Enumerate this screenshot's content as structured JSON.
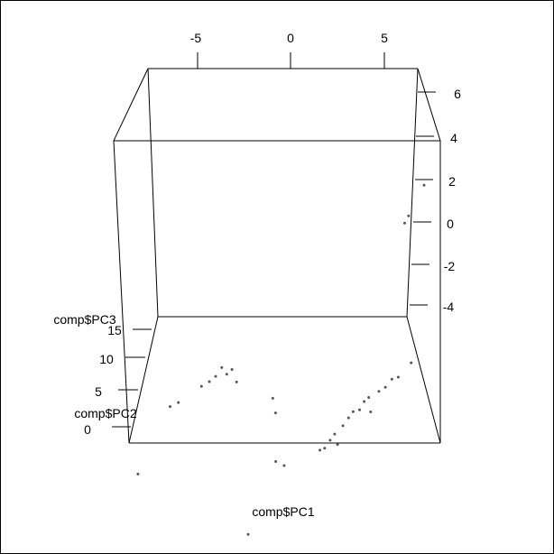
{
  "chart_data": {
    "type": "scatter",
    "title": "",
    "xlabel": "comp$PC1",
    "ylabel": "comp$PC2",
    "zlabel": "comp$PC3",
    "x_ticks": [
      "-5",
      "0",
      "5"
    ],
    "y_ticks": [
      "0",
      "5",
      "10",
      "15"
    ],
    "z_ticks": [
      "-4",
      "-2",
      "0",
      "2",
      "4",
      "6"
    ],
    "point_color": "#555555",
    "points": [
      {
        "pc1": 6.0,
        "pc2": 16.0,
        "pc3": 4.4
      },
      {
        "pc1": 5.2,
        "pc2": 15.6,
        "pc3": 3.1
      },
      {
        "pc1": 5.0,
        "pc2": 15.5,
        "pc3": 2.8
      },
      {
        "pc1": -8.2,
        "pc2": 3.0,
        "pc3": -4.3
      },
      {
        "pc1": -7.0,
        "pc2": 8.5,
        "pc3": -3.2
      },
      {
        "pc1": -6.6,
        "pc2": 9.0,
        "pc3": -3.2
      },
      {
        "pc1": -5.5,
        "pc2": 10.5,
        "pc3": -3.0
      },
      {
        "pc1": -5.1,
        "pc2": 10.8,
        "pc3": -2.9
      },
      {
        "pc1": -4.8,
        "pc2": 11.2,
        "pc3": -2.8
      },
      {
        "pc1": -4.5,
        "pc2": 11.5,
        "pc3": -2.5
      },
      {
        "pc1": -4.2,
        "pc2": 11.2,
        "pc3": -2.7
      },
      {
        "pc1": -3.9,
        "pc2": 11.0,
        "pc3": -2.4
      },
      {
        "pc1": -3.6,
        "pc2": 10.5,
        "pc3": -2.8
      },
      {
        "pc1": -1.3,
        "pc2": 8.5,
        "pc3": -3.5
      },
      {
        "pc1": -1.5,
        "pc2": 9.0,
        "pc3": -3.0
      },
      {
        "pc1": -0.8,
        "pc2": 3.5,
        "pc3": -3.9
      },
      {
        "pc1": -0.3,
        "pc2": 3.0,
        "pc3": -3.9
      },
      {
        "pc1": 1.3,
        "pc2": 6.5,
        "pc3": -4.5
      },
      {
        "pc1": 1.5,
        "pc2": 7.0,
        "pc3": -4.6
      },
      {
        "pc1": 1.7,
        "pc2": 8.0,
        "pc3": -4.6
      },
      {
        "pc1": 1.9,
        "pc2": 8.5,
        "pc3": -4.5
      },
      {
        "pc1": 2.1,
        "pc2": 8.0,
        "pc3": -4.8
      },
      {
        "pc1": 2.3,
        "pc2": 9.0,
        "pc3": -4.3
      },
      {
        "pc1": 2.5,
        "pc2": 10.0,
        "pc3": -4.3
      },
      {
        "pc1": 2.7,
        "pc2": 10.5,
        "pc3": -4.2
      },
      {
        "pc1": 3.0,
        "pc2": 11.0,
        "pc3": -4.3
      },
      {
        "pc1": 3.2,
        "pc2": 11.5,
        "pc3": -4.1
      },
      {
        "pc1": 3.4,
        "pc2": 12.0,
        "pc3": -4.1
      },
      {
        "pc1": 3.6,
        "pc2": 11.0,
        "pc3": -4.4
      },
      {
        "pc1": 3.9,
        "pc2": 12.5,
        "pc3": -4.0
      },
      {
        "pc1": 4.2,
        "pc2": 13.0,
        "pc3": -4.0
      },
      {
        "pc1": 4.5,
        "pc2": 13.5,
        "pc3": -3.8
      },
      {
        "pc1": 4.8,
        "pc2": 14.0,
        "pc3": -3.9
      },
      {
        "pc1": 5.4,
        "pc2": 15.0,
        "pc3": -3.6
      },
      {
        "pc1": -2.0,
        "pc2": 0.5,
        "pc3": -6.2
      }
    ]
  }
}
